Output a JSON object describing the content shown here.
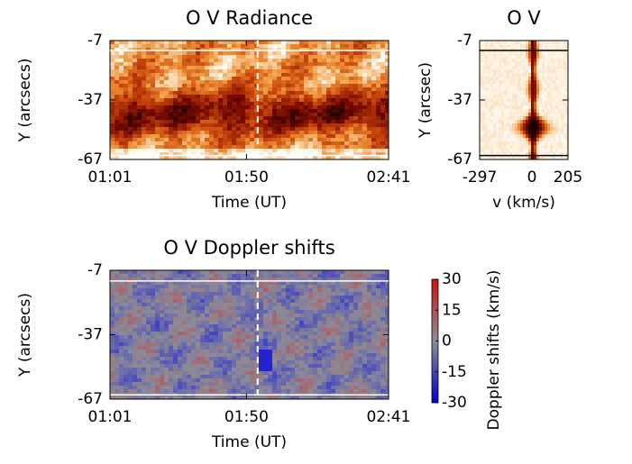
{
  "chart_data": [
    {
      "type": "heatmap",
      "title": "O V Radiance",
      "xlabel": "Time (UT)",
      "ylabel": "Y (arcsecs)",
      "xlim": [
        61,
        161
      ],
      "xticks": [
        {
          "value": 61,
          "label": "01:01"
        },
        {
          "value": 110,
          "label": "01:50"
        },
        {
          "value": 161,
          "label": "02:41"
        }
      ],
      "ylim": [
        -67,
        -7
      ],
      "yticks": [
        -7,
        -37,
        -67
      ],
      "vlines": [
        114
      ],
      "hlines": [
        -12,
        -65
      ],
      "colormap": "heat"
    },
    {
      "type": "spectrum",
      "title": "O V",
      "xlabel": "v (km/s)",
      "ylabel": "Y (arcsec)",
      "xlim": [
        -297,
        205
      ],
      "xticks": [
        -297,
        0,
        205
      ],
      "ylim": [
        -67,
        -7
      ],
      "yticks": [
        -7,
        -37,
        -67
      ],
      "hlines": [
        -12,
        -65
      ],
      "colormap": "heat"
    },
    {
      "type": "heatmap",
      "title": "O V Doppler shifts",
      "xlabel": "Time (UT)",
      "ylabel": "Y (arcsecs)",
      "xlim": [
        61,
        161
      ],
      "xticks": [
        {
          "value": 61,
          "label": "01:01"
        },
        {
          "value": 110,
          "label": "01:50"
        },
        {
          "value": 161,
          "label": "02:41"
        }
      ],
      "ylim": [
        -67,
        -7
      ],
      "yticks": [
        -7,
        -37,
        -67
      ],
      "vlines": [
        114
      ],
      "hlines": [
        -12,
        -65
      ],
      "colormap": "doppler",
      "colorbar": {
        "label": "Doppler shifts (km/s)",
        "clim": [
          -30,
          30
        ],
        "ticks": [
          30,
          15,
          0,
          -15,
          -30
        ]
      }
    }
  ]
}
